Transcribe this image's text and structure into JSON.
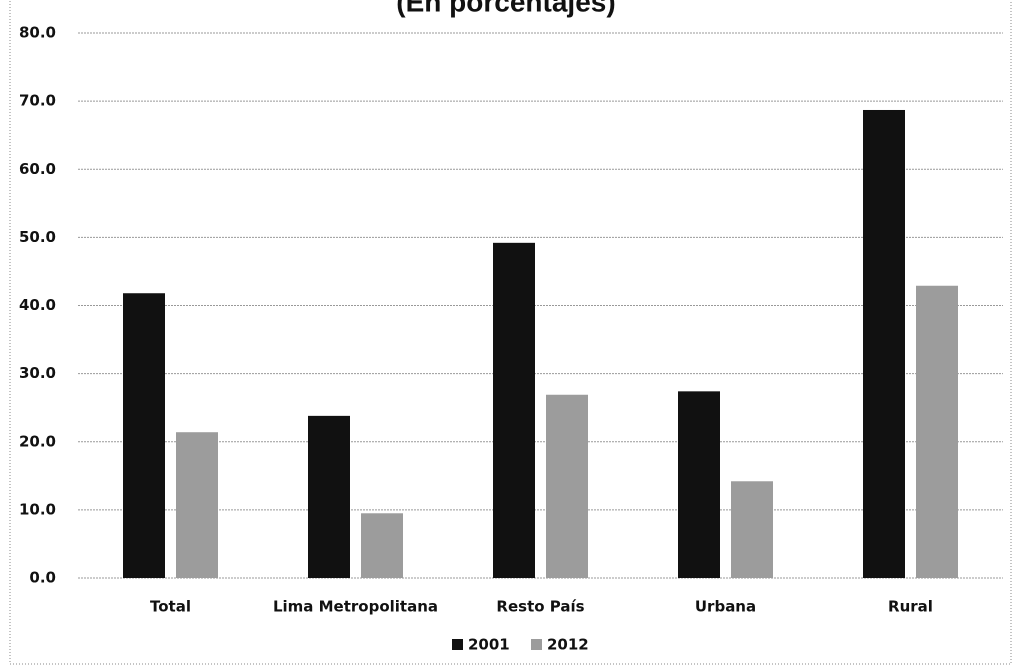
{
  "chart_data": {
    "type": "bar",
    "title": "(En porcentajes)",
    "categories": [
      "Total",
      "Lima Metropolitana",
      "Resto País",
      "Urbana",
      "Rural"
    ],
    "series": [
      {
        "name": "2001",
        "color": "#111111",
        "values": [
          41.8,
          23.8,
          49.2,
          27.4,
          68.7
        ]
      },
      {
        "name": "2012",
        "color": "#9c9c9c",
        "values": [
          21.4,
          9.5,
          26.9,
          14.2,
          42.9
        ]
      }
    ],
    "ylim": [
      0,
      80
    ],
    "yticks": [
      {
        "value": 0,
        "label": "0.0"
      },
      {
        "value": 10,
        "label": "10.0"
      },
      {
        "value": 20,
        "label": "20.0"
      },
      {
        "value": 30,
        "label": "30.0"
      },
      {
        "value": 40,
        "label": "40.0"
      },
      {
        "value": 50,
        "label": "50.0"
      },
      {
        "value": 60,
        "label": "60.0"
      },
      {
        "value": 70,
        "label": "70.0"
      },
      {
        "value": 80,
        "label": "80.0"
      }
    ],
    "grid": true,
    "legend": "bottom"
  }
}
